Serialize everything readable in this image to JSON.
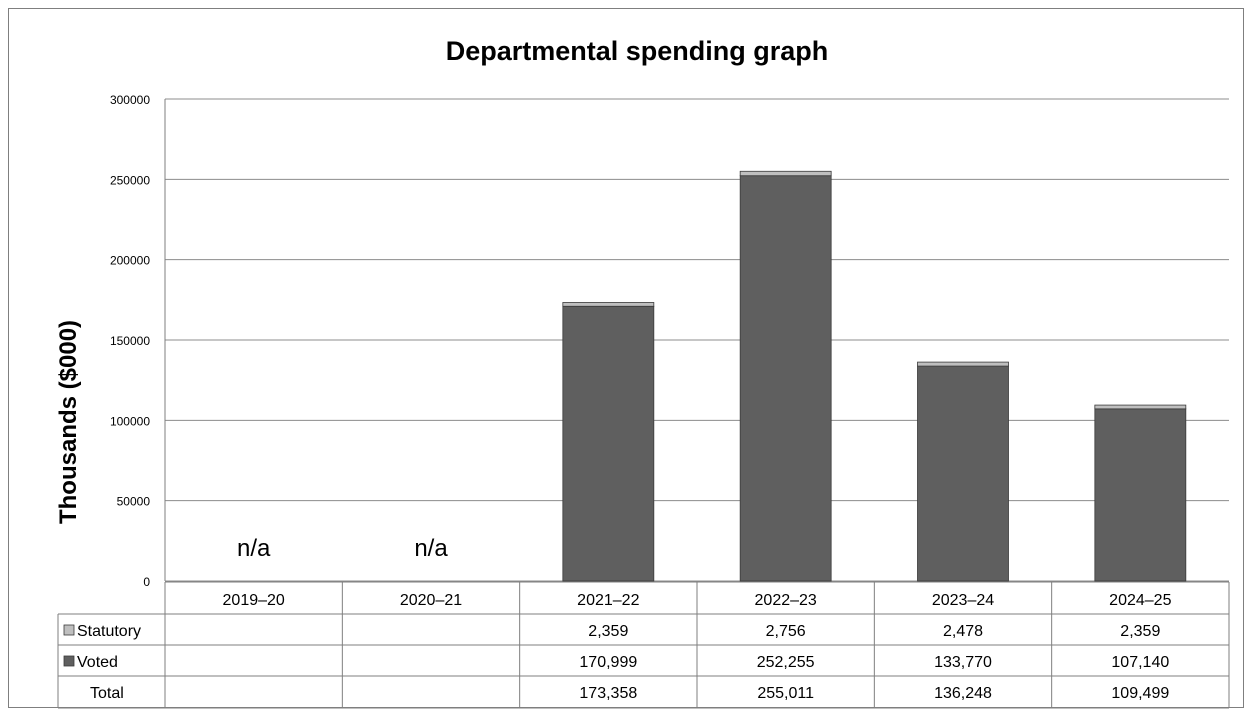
{
  "chart_data": {
    "type": "bar",
    "stacked": true,
    "title": "Departmental spending graph",
    "ylabel": "Thousands ($000)",
    "ylim": [
      0,
      300000
    ],
    "yticks": [
      "0",
      "50000",
      "100000",
      "150000",
      "200000",
      "250000",
      "300000"
    ],
    "grid": true,
    "categories": [
      "2019–20",
      "2020–21",
      "2021–22",
      "2022–23",
      "2023–24",
      "2024–25"
    ],
    "missing_label": "n/a",
    "series": [
      {
        "name": "Voted",
        "color": "#5f5f5f",
        "values": [
          null,
          null,
          170999,
          252255,
          133770,
          107140
        ],
        "labels": [
          "",
          "",
          "170,999",
          "252,255",
          "133,770",
          "107,140"
        ]
      },
      {
        "name": "Statutory",
        "color": "#bfbfbf",
        "values": [
          null,
          null,
          2359,
          2756,
          2478,
          2359
        ],
        "labels": [
          "",
          "",
          "2,359",
          "2,756",
          "2,478",
          "2,359"
        ]
      }
    ],
    "total": {
      "name": "Total",
      "labels": [
        "",
        "",
        "173,358",
        "255,011",
        "136,248",
        "109,499"
      ]
    },
    "table_rows": [
      "Statutory",
      "Voted",
      "Total"
    ]
  }
}
